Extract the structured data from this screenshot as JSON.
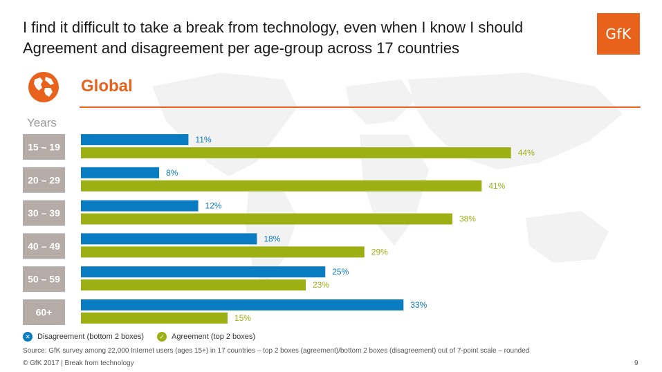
{
  "title_line1": "I find it difficult to take a break from technology, even when I know I should",
  "title_line2": "Agreement and disagreement per age-group across 17 countries",
  "logo_text": "GfK",
  "region": "Global",
  "years_label": "Years",
  "colors": {
    "disagreement": "#0a7cc2",
    "agreement": "#9cb014",
    "accent": "#e8621b",
    "age_box": "#b5aba7"
  },
  "chart_data": {
    "type": "bar",
    "orientation": "horizontal",
    "categories": [
      "15 – 19",
      "20 – 29",
      "30 – 39",
      "40 – 49",
      "50 – 59",
      "60+"
    ],
    "series": [
      {
        "name": "Disagreement (bottom 2 boxes)",
        "values": [
          11,
          8,
          12,
          18,
          25,
          33
        ],
        "labels": [
          "11%",
          "8%",
          "12%",
          "18%",
          "25%",
          "33%"
        ]
      },
      {
        "name": "Agreement (top 2 boxes)",
        "values": [
          44,
          41,
          38,
          29,
          23,
          15
        ],
        "labels": [
          "44%",
          "41%",
          "38%",
          "29%",
          "23%",
          "15%"
        ]
      }
    ],
    "legend_position": "bottom-left"
  },
  "legend": {
    "disagreement_label": "Disagreement (bottom 2 boxes)",
    "agreement_label": "Agreement (top 2 boxes)",
    "disagreement_icon": "✕",
    "agreement_icon": "✓"
  },
  "source": "Source: GfK survey among 22,000 Internet users (ages 15+) in 17 countries – top 2 boxes (agreement)/bottom 2 boxes (disagreement) out of 7-point scale – rounded",
  "footer": "© GfK 2017 | Break from technology",
  "page_number": "9"
}
